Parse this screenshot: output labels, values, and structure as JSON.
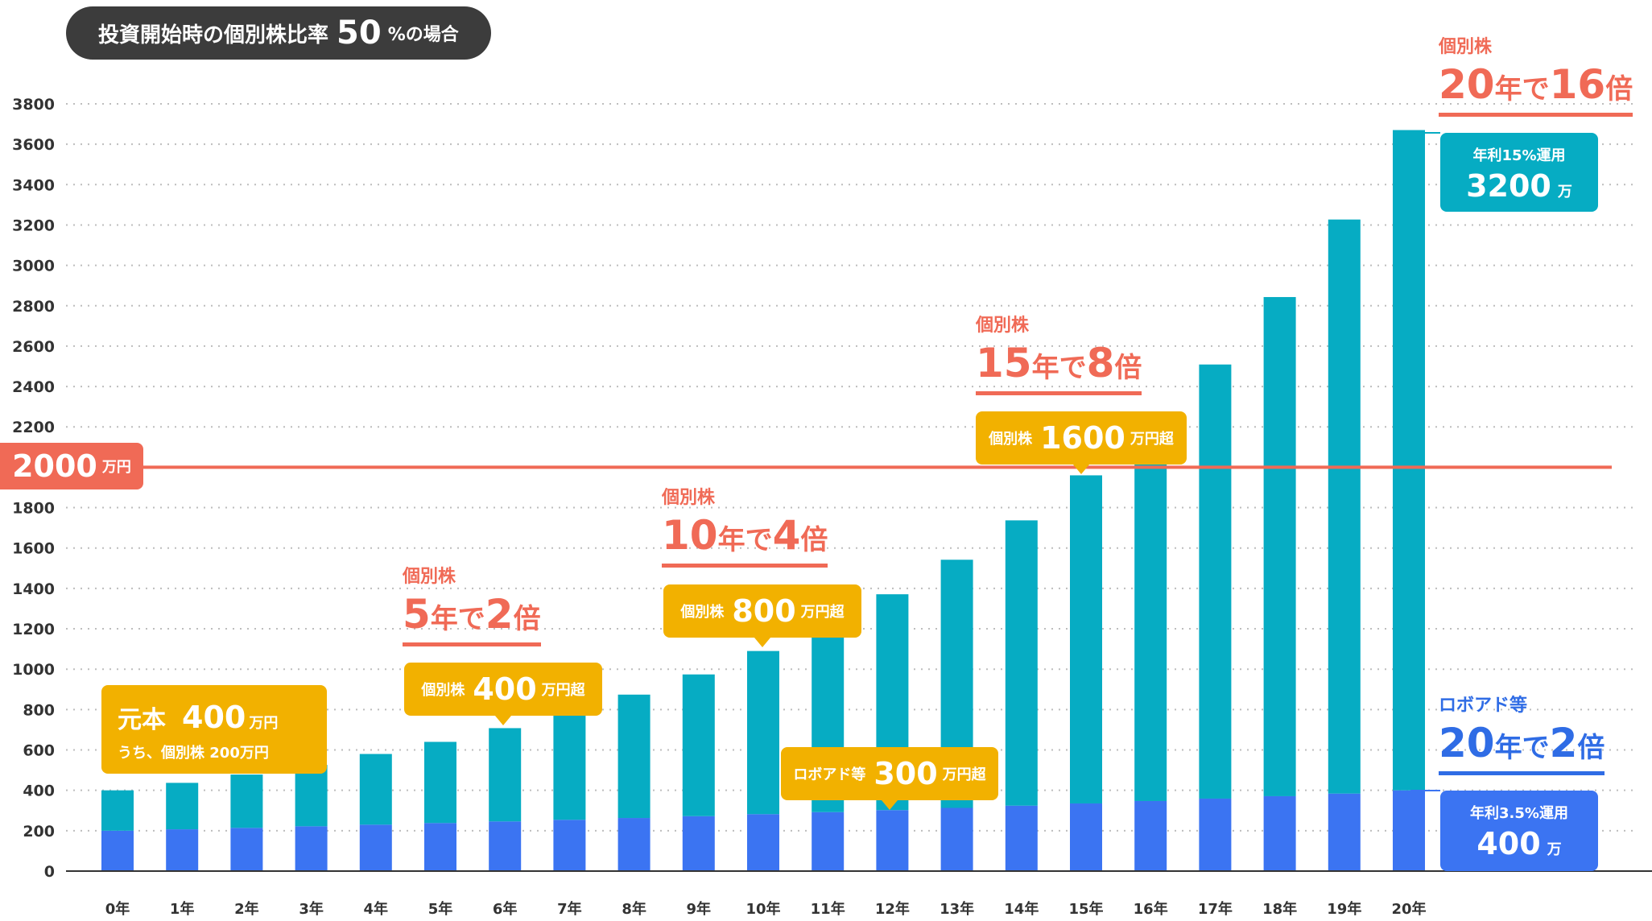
{
  "header": {
    "prefix": "投資開始時の個別株比率",
    "ratio": "50",
    "suffix": "%の場合"
  },
  "colors": {
    "teal": "#06acc3",
    "blue": "#3b74f2",
    "red": "#f06a56",
    "gold": "#f2b100"
  },
  "chart_data": {
    "type": "bar",
    "stacked": true,
    "categories": [
      "0年",
      "1年",
      "2年",
      "3年",
      "4年",
      "5年",
      "6年",
      "7年",
      "8年",
      "9年",
      "10年",
      "11年",
      "12年",
      "13年",
      "14年",
      "15年",
      "16年",
      "17年",
      "18年",
      "19年",
      "20年"
    ],
    "series": [
      {
        "name": "ロボアド等",
        "color": "#3b74f2",
        "values": [
          200,
          207,
          214,
          222,
          230,
          238,
          246,
          254,
          263,
          272,
          282,
          292,
          302,
          313,
          324,
          335,
          347,
          359,
          371,
          384,
          400
        ]
      },
      {
        "name": "個別株",
        "color": "#06acc3",
        "values": [
          200,
          230,
          264,
          304,
          350,
          402,
          462,
          532,
          611,
          702,
          808,
          929,
          1069,
          1229,
          1413,
          1625,
          1869,
          2150,
          2472,
          2843,
          3270
        ]
      }
    ],
    "y_ticks": [
      0,
      200,
      400,
      600,
      800,
      1000,
      1200,
      1400,
      1600,
      1800,
      2200,
      2400,
      2600,
      2800,
      3000,
      3200,
      3400,
      3600,
      3800
    ],
    "ylim": [
      0,
      3800
    ],
    "grid": true,
    "reference_line": {
      "value": 2000,
      "label_value": "2000",
      "label_unit": "万円"
    }
  },
  "labels": {
    "principal": {
      "title": "元本",
      "value": "400",
      "unit": "万円",
      "sub": "うち、個別株 200万円"
    },
    "robo_300": {
      "prefix": "ロボアド等",
      "value": "300",
      "unit": "万円超"
    },
    "stock_400": {
      "prefix": "個別株",
      "value": "400",
      "unit": "万円超"
    },
    "stock_800": {
      "prefix": "個別株",
      "value": "800",
      "unit": "万円超"
    },
    "stock_1600": {
      "prefix": "個別株",
      "value": "1600",
      "unit": "万円超"
    },
    "final_stock": {
      "line1": "年利15%運用",
      "value": "3200",
      "unit": "万"
    },
    "final_robo": {
      "line1": "年利3.5%運用",
      "value": "400",
      "unit": "万"
    }
  },
  "callouts": {
    "y5": {
      "sub": "個別株",
      "n1": "5",
      "t1": "年で",
      "n2": "2",
      "t2": "倍"
    },
    "y10": {
      "sub": "個別株",
      "n1": "10",
      "t1": "年で",
      "n2": "4",
      "t2": "倍"
    },
    "y15": {
      "sub": "個別株",
      "n1": "15",
      "t1": "年で",
      "n2": "8",
      "t2": "倍"
    },
    "y20": {
      "sub": "個別株",
      "n1": "20",
      "t1": "年で",
      "n2": "16",
      "t2": "倍"
    },
    "robo20": {
      "sub": "ロボアド等",
      "n1": "20",
      "t1": "年で",
      "n2": "2",
      "t2": "倍"
    }
  }
}
